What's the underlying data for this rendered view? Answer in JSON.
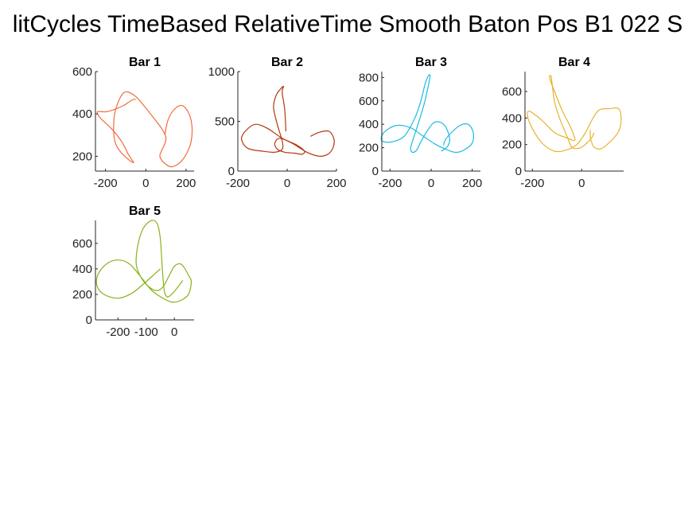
{
  "figure": {
    "title": "litCycles TimeBased RelativeTime Smooth Baton Pos B1 022 S"
  },
  "chart_data": [
    {
      "type": "line",
      "title": "Bar 1",
      "color": "#f26b3a",
      "xlim": [
        -250,
        240
      ],
      "ylim": [
        130,
        600
      ],
      "xticks": [
        -200,
        0,
        200
      ],
      "yticks": [
        200,
        400,
        600
      ],
      "series": [
        {
          "x": [
            -50,
            -70,
            -110,
            -160,
            -200,
            -240,
            -225,
            -170,
            -120,
            -90,
            -70,
            -60,
            -80,
            -120,
            -150,
            -160,
            -150,
            -110,
            -60,
            -10,
            40,
            80,
            100,
            95,
            80,
            70,
            90,
            130,
            180,
            220,
            230,
            215,
            180,
            140,
            110,
            95
          ],
          "y": [
            470,
            465,
            440,
            420,
            410,
            410,
            380,
            330,
            270,
            215,
            185,
            170,
            180,
            215,
            260,
            330,
            420,
            500,
            490,
            440,
            380,
            330,
            290,
            260,
            230,
            200,
            170,
            150,
            180,
            250,
            330,
            400,
            440,
            420,
            370,
            300
          ]
        }
      ]
    },
    {
      "type": "line",
      "title": "Bar 2",
      "color": "#b3360f",
      "xlim": [
        -200,
        200
      ],
      "ylim": [
        0,
        1000
      ],
      "xticks": [
        -200,
        0,
        200
      ],
      "yticks": [
        0,
        500,
        1000
      ],
      "series": [
        {
          "x": [
            -5,
            -10,
            -20,
            -15,
            -25,
            -45,
            -55,
            -40,
            -20,
            -20,
            -50,
            -100,
            -160,
            -185,
            -170,
            -130,
            -80,
            -20,
            40,
            70,
            60,
            30,
            -10,
            -40,
            -50,
            -30,
            20,
            80,
            130,
            165,
            185,
            190,
            170,
            130,
            95
          ],
          "y": [
            400,
            620,
            790,
            850,
            830,
            760,
            640,
            470,
            300,
            220,
            190,
            200,
            230,
            320,
            400,
            470,
            430,
            330,
            260,
            200,
            170,
            180,
            190,
            220,
            280,
            330,
            280,
            190,
            150,
            170,
            230,
            320,
            400,
            390,
            350
          ]
        }
      ]
    },
    {
      "type": "line",
      "title": "Bar 3",
      "color": "#1ebae2",
      "xlim": [
        -240,
        240
      ],
      "ylim": [
        0,
        850
      ],
      "xticks": [
        -200,
        0,
        200
      ],
      "yticks": [
        0,
        200,
        400,
        600,
        800
      ],
      "series": [
        {
          "x": [
            50,
            80,
            90,
            70,
            40,
            10,
            -20,
            -50,
            -70,
            -90,
            -100,
            -90,
            -60,
            -30,
            -10,
            -5,
            -15,
            -30,
            -50,
            -80,
            -130,
            -190,
            -240,
            -230,
            -170,
            -100,
            -40,
            20,
            80,
            120,
            160,
            200,
            205,
            180,
            140,
            100,
            70,
            60
          ],
          "y": [
            170,
            210,
            280,
            380,
            420,
            410,
            340,
            250,
            180,
            160,
            190,
            260,
            420,
            600,
            760,
            820,
            810,
            740,
            600,
            450,
            300,
            250,
            260,
            330,
            390,
            370,
            300,
            230,
            180,
            160,
            180,
            240,
            330,
            400,
            390,
            330,
            270,
            220
          ]
        }
      ]
    },
    {
      "type": "line",
      "title": "Bar 4",
      "color": "#e8b32d",
      "xlim": [
        -230,
        170
      ],
      "ylim": [
        0,
        750
      ],
      "xticks": [
        -200,
        0
      ],
      "yticks": [
        0,
        200,
        400,
        600
      ],
      "series": [
        {
          "x": [
            50,
            40,
            20,
            0,
            -20,
            -40,
            -55,
            -70,
            -90,
            -110,
            -120,
            -125,
            -130,
            -110,
            -80,
            -50,
            -30,
            -30,
            -60,
            -110,
            -160,
            -210,
            -220,
            -200,
            -160,
            -110,
            -60,
            -20,
            15,
            40,
            70,
            110,
            150,
            160,
            150,
            120,
            80,
            50,
            40,
            35,
            35
          ],
          "y": [
            290,
            250,
            210,
            180,
            170,
            180,
            240,
            310,
            400,
            520,
            660,
            720,
            700,
            600,
            460,
            350,
            260,
            230,
            250,
            290,
            380,
            450,
            420,
            320,
            210,
            150,
            160,
            200,
            290,
            380,
            460,
            470,
            470,
            390,
            300,
            230,
            170,
            180,
            220,
            250,
            310
          ]
        }
      ]
    },
    {
      "type": "line",
      "title": "Bar 5",
      "color": "#88b219",
      "xlim": [
        -280,
        70
      ],
      "ylim": [
        0,
        780
      ],
      "xticks": [
        -200,
        -100,
        0
      ],
      "yticks": [
        0,
        200,
        400,
        600
      ],
      "series": [
        {
          "x": [
            30,
            10,
            -10,
            -25,
            -35,
            -40,
            -45,
            -50,
            -60,
            -80,
            -110,
            -130,
            -135,
            -115,
            -85,
            -60,
            -40,
            -20,
            0,
            20,
            35,
            50,
            60,
            50,
            20,
            -10,
            -40,
            -80,
            -120,
            -160,
            -200,
            -240,
            -270,
            -275,
            -250,
            -200,
            -150,
            -100,
            -70,
            -50
          ],
          "y": [
            310,
            250,
            200,
            180,
            220,
            320,
            480,
            640,
            750,
            780,
            720,
            580,
            430,
            320,
            250,
            230,
            260,
            340,
            420,
            440,
            410,
            350,
            300,
            200,
            150,
            140,
            170,
            230,
            340,
            440,
            470,
            440,
            360,
            270,
            200,
            170,
            210,
            300,
            360,
            400
          ]
        }
      ]
    }
  ]
}
